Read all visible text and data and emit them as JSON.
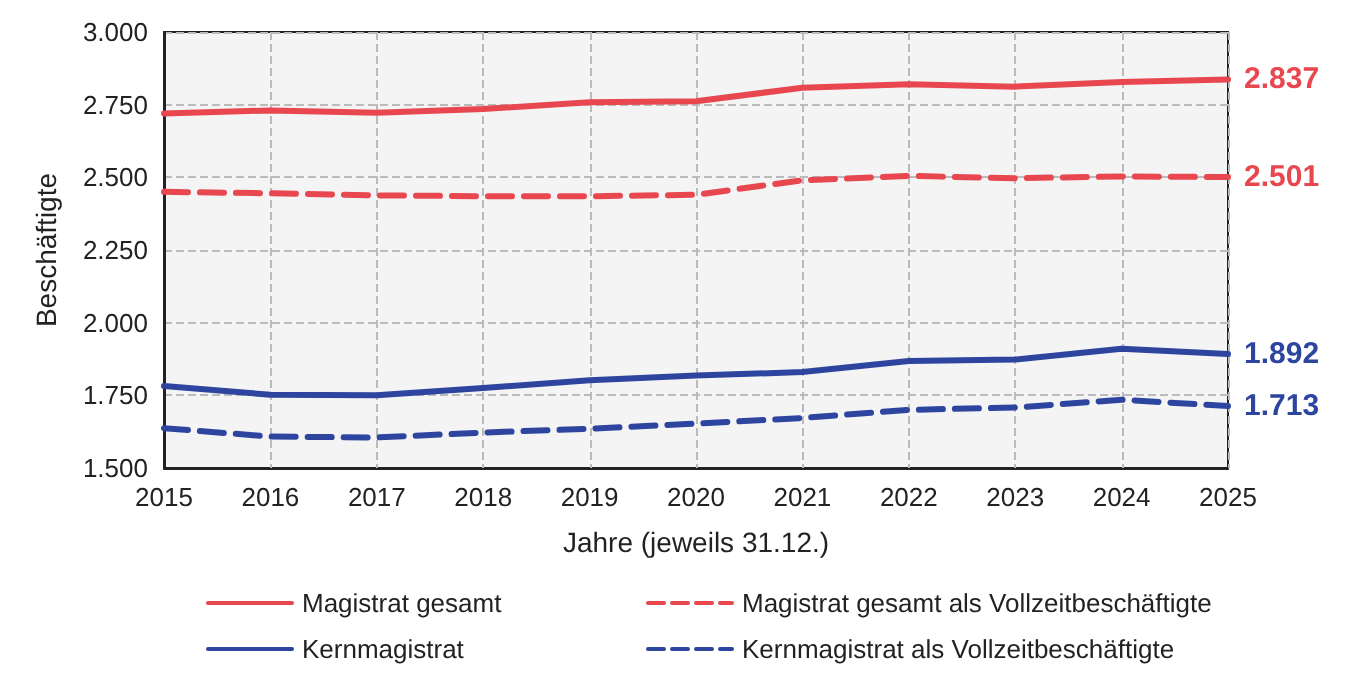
{
  "chart_data": {
    "type": "line",
    "xlabel": "Jahre (jeweils 31.12.)",
    "ylabel": "Beschäftigte",
    "x": [
      2015,
      2016,
      2017,
      2018,
      2019,
      2020,
      2021,
      2022,
      2023,
      2024,
      2025
    ],
    "xlim": [
      2015,
      2025
    ],
    "xticks": [
      2015,
      2016,
      2017,
      2018,
      2019,
      2020,
      2021,
      2022,
      2023,
      2024,
      2025
    ],
    "ylim": [
      1500,
      3000
    ],
    "yticks": [
      {
        "value": 1500,
        "label": "1.500"
      },
      {
        "value": 1750,
        "label": "1.750"
      },
      {
        "value": 2000,
        "label": "2.000"
      },
      {
        "value": 2250,
        "label": "2.250"
      },
      {
        "value": 2500,
        "label": "2.500"
      },
      {
        "value": 2750,
        "label": "2.750"
      },
      {
        "value": 3000,
        "label": "3.000"
      }
    ],
    "grid": true,
    "legend": "bottom",
    "marker": "none",
    "series": [
      {
        "name": "Magistrat gesamt",
        "color": "#e8474f",
        "line_style": "solid",
        "values": [
          2720,
          2730,
          2722,
          2735,
          2758,
          2762,
          2808,
          2820,
          2812,
          2828,
          2837
        ],
        "value_labels": [
          null,
          null,
          null,
          null,
          null,
          null,
          null,
          null,
          null,
          null,
          "2.837"
        ]
      },
      {
        "name": "Magistrat gesamt als Vollzeitbeschäftigte",
        "color": "#e8474f",
        "line_style": "dashed",
        "values": [
          2450,
          2445,
          2438,
          2435,
          2435,
          2440,
          2490,
          2505,
          2497,
          2503,
          2501
        ],
        "value_labels": [
          null,
          null,
          null,
          null,
          null,
          null,
          null,
          null,
          null,
          null,
          "2.501"
        ]
      },
      {
        "name": "Kernmagistrat",
        "color": "#2e45a0",
        "line_style": "solid",
        "values": [
          1782,
          1752,
          1750,
          1775,
          1802,
          1818,
          1830,
          1868,
          1873,
          1910,
          1892
        ],
        "value_labels": [
          null,
          null,
          null,
          null,
          null,
          null,
          null,
          null,
          null,
          null,
          "1.892"
        ]
      },
      {
        "name": "Kernmagistrat als Vollzeitbeschäftigte",
        "color": "#2e45a0",
        "line_style": "dashed",
        "values": [
          1637,
          1608,
          1605,
          1622,
          1635,
          1653,
          1672,
          1700,
          1708,
          1735,
          1713
        ],
        "value_labels": [
          null,
          null,
          null,
          null,
          null,
          null,
          null,
          null,
          null,
          null,
          "1.713"
        ]
      }
    ]
  }
}
